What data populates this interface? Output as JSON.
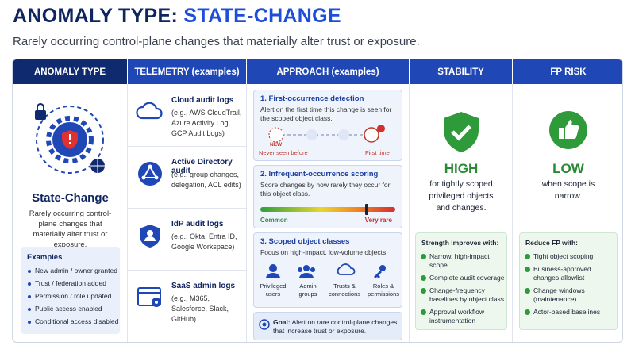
{
  "header": {
    "title_prefix": "ANOMALY TYPE:",
    "title_highlight": "STATE-CHANGE",
    "subtitle": "Rarely occurring control-plane changes that materially alter trust or exposure."
  },
  "columns": [
    "ANOMALY TYPE",
    "TELEMETRY (examples)",
    "APPROACH (examples)",
    "STABILITY",
    "FP RISK"
  ],
  "anomaly_type": {
    "name": "State-Change",
    "description": "Rarely occurring control-plane changes that materially alter trust or exposure.",
    "examples_title": "Examples",
    "examples": [
      "New admin / owner granted",
      "Trust / federation added",
      "Permission / role updated",
      "Public access enabled",
      "Conditional access disabled"
    ]
  },
  "telemetry": [
    {
      "title": "Cloud audit logs",
      "detail": "(e.g., AWS CloudTrail, Azure Activity Log, GCP Audit Logs)"
    },
    {
      "title": "Active Directory audit",
      "detail": "(e.g., group changes, delegation, ACL edits)"
    },
    {
      "title": "IdP audit logs",
      "detail": "(e.g., Okta, Entra ID, Google Workspace)"
    },
    {
      "title": "SaaS admin logs",
      "detail": "(e.g., M365, Salesforce, Slack, GitHub)"
    }
  ],
  "approach": {
    "first_occurrence": {
      "title": "1. First-occurrence detection",
      "text": "Alert on the first time this change is seen for the scoped object class.",
      "badge": "NEW",
      "left_label": "Never seen before",
      "right_label": "First time"
    },
    "infrequent": {
      "title": "2. Infrequent-occurrence scoring",
      "text": "Score changes by how rarely they occur for this object class.",
      "low_label": "Common",
      "high_label": "Very rare"
    },
    "scoped": {
      "title": "3. Scoped object classes",
      "text": "Focus on high-impact, low-volume objects.",
      "classes": [
        "Privileged users",
        "Admin groups",
        "Trusts & connections",
        "Roles & permissions"
      ]
    },
    "goal": {
      "label": "Goal:",
      "text": "Alert on rare control-plane changes that increase trust or exposure."
    }
  },
  "stability": {
    "level": "HIGH",
    "text": "for tightly scoped privileged objects and changes.",
    "box_title": "Strength improves with:",
    "items": [
      "Narrow, high-impact scope",
      "Complete audit coverage",
      "Change-frequency baselines by object class",
      "Approval workflow instrumentation"
    ]
  },
  "fp_risk": {
    "level": "LOW",
    "text": "when scope is narrow.",
    "box_title": "Reduce FP with:",
    "items": [
      "Tight object scoping",
      "Business-approved changes allowlist",
      "Change windows (maintenance)",
      "Actor-based baselines"
    ]
  }
}
